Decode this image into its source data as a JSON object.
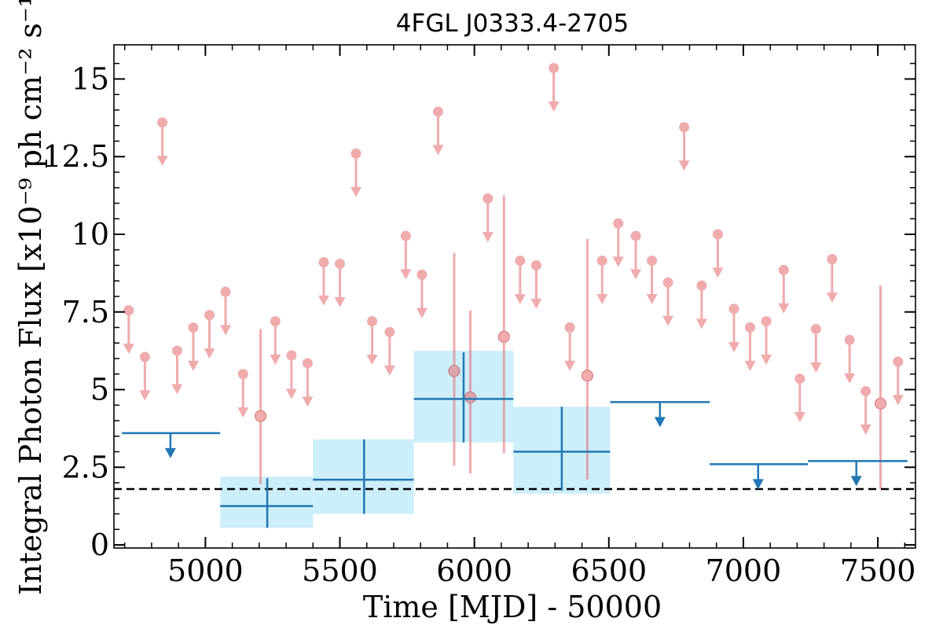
{
  "chart_data": {
    "type": "scatter",
    "title": "4FGL J0333.4-2705",
    "xlabel": "Time [MJD] - 50000",
    "ylabel": "Integral Photon Flux [x10⁻⁹ ph cm⁻² s⁻¹]",
    "xlim": [
      4660,
      7640
    ],
    "ylim": [
      -0.1,
      16.1
    ],
    "x_ticks": [
      5000,
      5500,
      6000,
      6500,
      7000,
      7500
    ],
    "y_ticks": [
      0,
      2.5,
      5,
      7.5,
      10,
      12.5,
      15
    ],
    "x_tick_labels": [
      "5000",
      "5500",
      "6000",
      "6500",
      "7000",
      "7500"
    ],
    "y_tick_labels": [
      "0",
      "2.5",
      "5",
      "7.5",
      "10",
      "12.5",
      "15"
    ],
    "reference_line": {
      "y": 1.8,
      "style": "dashed",
      "color": "#000000"
    },
    "colors": {
      "fine": "#e8787c",
      "coarse": "#1f77b4",
      "band": "#cdeefb"
    },
    "fine_bins": {
      "detections": [
        {
          "x": 5205,
          "y": 4.15,
          "lo": 1.95,
          "hi": 6.95
        },
        {
          "x": 5925,
          "y": 5.6,
          "lo": 2.55,
          "hi": 9.4
        },
        {
          "x": 5985,
          "y": 4.75,
          "lo": 2.3,
          "hi": 7.55
        },
        {
          "x": 6110,
          "y": 6.7,
          "lo": 2.95,
          "hi": 11.25
        },
        {
          "x": 6420,
          "y": 5.45,
          "lo": 2.1,
          "hi": 9.85
        },
        {
          "x": 7510,
          "y": 4.55,
          "lo": 1.8,
          "hi": 8.35
        }
      ],
      "upper_limits": [
        {
          "x": 4715,
          "y": 7.55
        },
        {
          "x": 4775,
          "y": 6.05
        },
        {
          "x": 4840,
          "y": 13.6
        },
        {
          "x": 4895,
          "y": 6.25
        },
        {
          "x": 4955,
          "y": 7.0
        },
        {
          "x": 5015,
          "y": 7.4
        },
        {
          "x": 5075,
          "y": 8.15
        },
        {
          "x": 5140,
          "y": 5.5
        },
        {
          "x": 5260,
          "y": 7.2
        },
        {
          "x": 5320,
          "y": 6.1
        },
        {
          "x": 5380,
          "y": 5.85
        },
        {
          "x": 5440,
          "y": 9.1
        },
        {
          "x": 5500,
          "y": 9.05
        },
        {
          "x": 5560,
          "y": 12.6
        },
        {
          "x": 5620,
          "y": 7.2
        },
        {
          "x": 5685,
          "y": 6.85
        },
        {
          "x": 5745,
          "y": 9.95
        },
        {
          "x": 5805,
          "y": 8.7
        },
        {
          "x": 5865,
          "y": 13.95
        },
        {
          "x": 6050,
          "y": 11.15
        },
        {
          "x": 6170,
          "y": 9.15
        },
        {
          "x": 6230,
          "y": 9.0
        },
        {
          "x": 6295,
          "y": 15.35
        },
        {
          "x": 6355,
          "y": 7.0
        },
        {
          "x": 6475,
          "y": 9.15
        },
        {
          "x": 6535,
          "y": 10.35
        },
        {
          "x": 6600,
          "y": 9.95
        },
        {
          "x": 6660,
          "y": 9.15
        },
        {
          "x": 6720,
          "y": 8.45
        },
        {
          "x": 6780,
          "y": 13.45
        },
        {
          "x": 6845,
          "y": 8.35
        },
        {
          "x": 6905,
          "y": 10.0
        },
        {
          "x": 6965,
          "y": 7.6
        },
        {
          "x": 7025,
          "y": 7.0
        },
        {
          "x": 7085,
          "y": 7.2
        },
        {
          "x": 7150,
          "y": 8.85
        },
        {
          "x": 7210,
          "y": 5.35
        },
        {
          "x": 7270,
          "y": 6.95
        },
        {
          "x": 7330,
          "y": 9.2
        },
        {
          "x": 7395,
          "y": 6.6
        },
        {
          "x": 7455,
          "y": 4.95
        },
        {
          "x": 7575,
          "y": 5.9
        }
      ]
    },
    "coarse_bins": {
      "detections": [
        {
          "x0": 5055,
          "x1": 5400,
          "xc": 5230,
          "y": 1.25,
          "lo": 0.55,
          "hi": 2.15,
          "band_lo": 0.55,
          "band_hi": 2.2
        },
        {
          "x0": 5400,
          "x1": 5775,
          "xc": 5590,
          "y": 2.1,
          "lo": 1.0,
          "hi": 3.4,
          "band_lo": 1.0,
          "band_hi": 3.4
        },
        {
          "x0": 5775,
          "x1": 6145,
          "xc": 5960,
          "y": 4.7,
          "lo": 3.3,
          "hi": 6.2,
          "band_lo": 3.3,
          "band_hi": 6.25
        },
        {
          "x0": 6145,
          "x1": 6505,
          "xc": 6325,
          "y": 3.0,
          "lo": 1.75,
          "hi": 4.45,
          "band_lo": 1.65,
          "band_hi": 4.45
        }
      ],
      "upper_limits": [
        {
          "x0": 4690,
          "x1": 5055,
          "xc": 4870,
          "y": 3.6
        },
        {
          "x0": 6505,
          "x1": 6875,
          "xc": 6690,
          "y": 4.6
        },
        {
          "x0": 6875,
          "x1": 7240,
          "xc": 7055,
          "y": 2.6
        },
        {
          "x0": 7240,
          "x1": 7610,
          "xc": 7420,
          "y": 2.7
        }
      ]
    }
  }
}
